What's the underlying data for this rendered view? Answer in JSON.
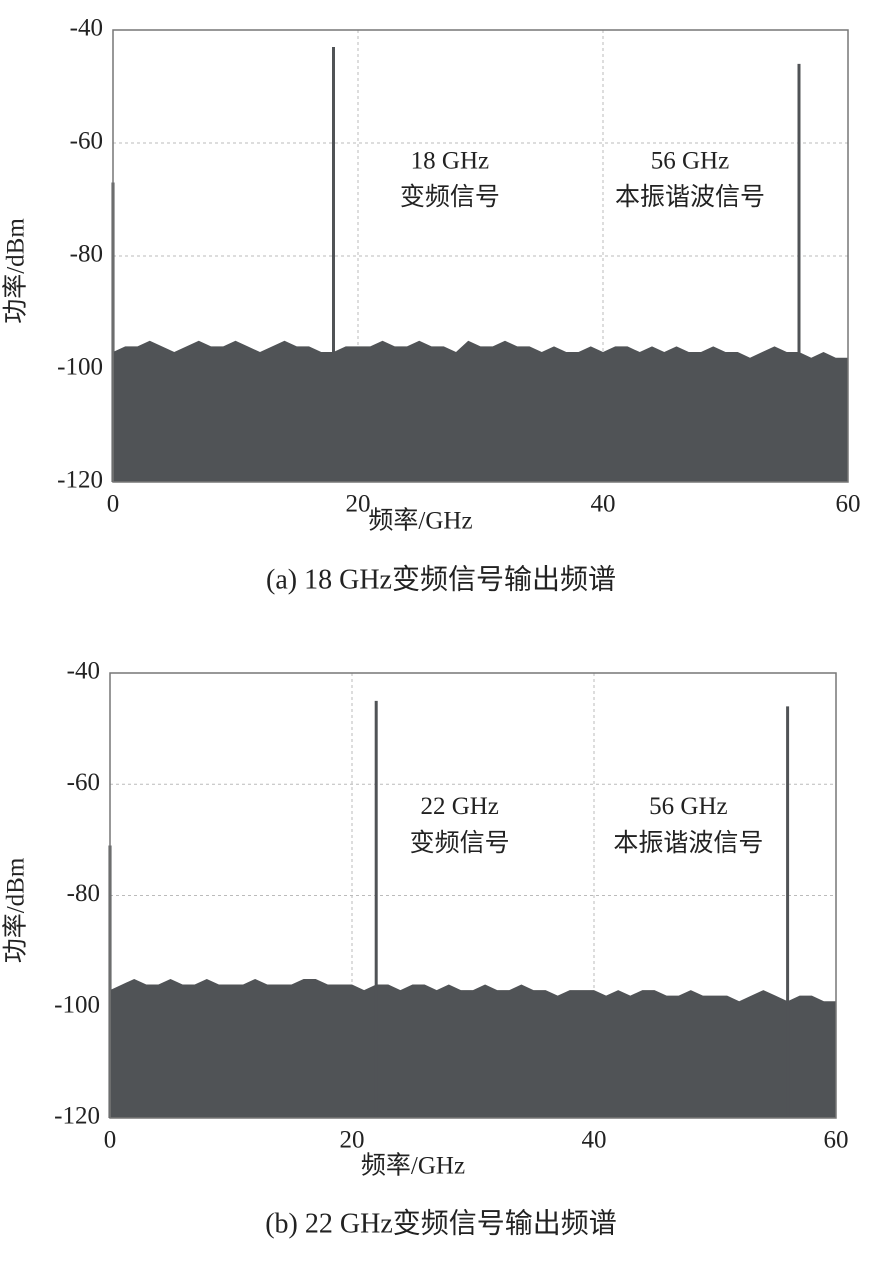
{
  "chart_data": [
    {
      "type": "spectrum",
      "xlabel": "频率/GHz",
      "ylabel": "功率/dBm",
      "caption": "(a) 18 GHz变频信号输出频谱",
      "xlim": [
        0,
        60
      ],
      "xticks": [
        0,
        20,
        40,
        60
      ],
      "ylim": [
        -120,
        -40
      ],
      "yticks": [
        -40,
        -60,
        -80,
        -100,
        -120
      ],
      "grid": true,
      "series": [
        {
          "kind": "area",
          "color": "#505356",
          "x": [
            0,
            1,
            2,
            3,
            4,
            5,
            6,
            7,
            8,
            9,
            10,
            11,
            12,
            13,
            14,
            15,
            16,
            17,
            18,
            19,
            20,
            21,
            22,
            23,
            24,
            25,
            26,
            27,
            28,
            29,
            30,
            31,
            32,
            33,
            34,
            35,
            36,
            37,
            38,
            39,
            40,
            41,
            42,
            43,
            44,
            45,
            46,
            47,
            48,
            49,
            50,
            51,
            52,
            53,
            54,
            55,
            56,
            57,
            58,
            59,
            60
          ],
          "values": [
            -97,
            -96,
            -96,
            -95,
            -96,
            -97,
            -96,
            -95,
            -96,
            -96,
            -95,
            -96,
            -97,
            -96,
            -95,
            -96,
            -96,
            -97,
            -97,
            -96,
            -96,
            -96,
            -95,
            -96,
            -96,
            -95,
            -96,
            -96,
            -97,
            -95,
            -96,
            -96,
            -95,
            -96,
            -96,
            -97,
            -96,
            -97,
            -97,
            -96,
            -97,
            -96,
            -96,
            -97,
            -96,
            -97,
            -96,
            -97,
            -97,
            -96,
            -97,
            -97,
            -98,
            -97,
            -96,
            -97,
            -97,
            -98,
            -97,
            -98,
            -98
          ]
        },
        {
          "kind": "stem",
          "color": "#505356",
          "x": [
            0,
            18,
            56
          ],
          "values": [
            -67,
            -43,
            -46
          ]
        }
      ],
      "annotations": [
        {
          "text": "18 GHz",
          "x": 27.5,
          "y": -63.5
        },
        {
          "text": "变频信号",
          "x": 27.5,
          "y": -70
        },
        {
          "text": "56 GHz",
          "x": 47.1,
          "y": -63.5
        },
        {
          "text": "本振谐波信号",
          "x": 47.1,
          "y": -70
        }
      ]
    },
    {
      "type": "spectrum",
      "xlabel": "频率/GHz",
      "ylabel": "功率/dBm",
      "caption": "(b) 22 GHz变频信号输出频谱",
      "xlim": [
        0,
        60
      ],
      "xticks": [
        0,
        20,
        40,
        60
      ],
      "ylim": [
        -120,
        -40
      ],
      "yticks": [
        -40,
        -60,
        -80,
        -100,
        -120
      ],
      "grid": true,
      "series": [
        {
          "kind": "area",
          "color": "#505356",
          "x": [
            0,
            1,
            2,
            3,
            4,
            5,
            6,
            7,
            8,
            9,
            10,
            11,
            12,
            13,
            14,
            15,
            16,
            17,
            18,
            19,
            20,
            21,
            22,
            23,
            24,
            25,
            26,
            27,
            28,
            29,
            30,
            31,
            32,
            33,
            34,
            35,
            36,
            37,
            38,
            39,
            40,
            41,
            42,
            43,
            44,
            45,
            46,
            47,
            48,
            49,
            50,
            51,
            52,
            53,
            54,
            55,
            56,
            57,
            58,
            59,
            60
          ],
          "values": [
            -97,
            -96,
            -95,
            -96,
            -96,
            -95,
            -96,
            -96,
            -95,
            -96,
            -96,
            -96,
            -95,
            -96,
            -96,
            -96,
            -95,
            -95,
            -96,
            -96,
            -96,
            -97,
            -96,
            -96,
            -97,
            -96,
            -96,
            -97,
            -96,
            -97,
            -97,
            -96,
            -97,
            -97,
            -96,
            -97,
            -97,
            -98,
            -97,
            -97,
            -97,
            -98,
            -97,
            -98,
            -97,
            -97,
            -98,
            -98,
            -97,
            -98,
            -98,
            -98,
            -99,
            -98,
            -97,
            -98,
            -99,
            -98,
            -98,
            -99,
            -99
          ]
        },
        {
          "kind": "stem",
          "color": "#505356",
          "x": [
            0,
            22,
            56
          ],
          "values": [
            -71,
            -45,
            -46
          ]
        }
      ],
      "annotations": [
        {
          "text": "22 GHz",
          "x": 28.9,
          "y": -64.3
        },
        {
          "text": "变频信号",
          "x": 28.9,
          "y": -71
        },
        {
          "text": "56 GHz",
          "x": 47.8,
          "y": -64.3
        },
        {
          "text": "本振谐波信号",
          "x": 47.8,
          "y": -71
        }
      ]
    }
  ]
}
